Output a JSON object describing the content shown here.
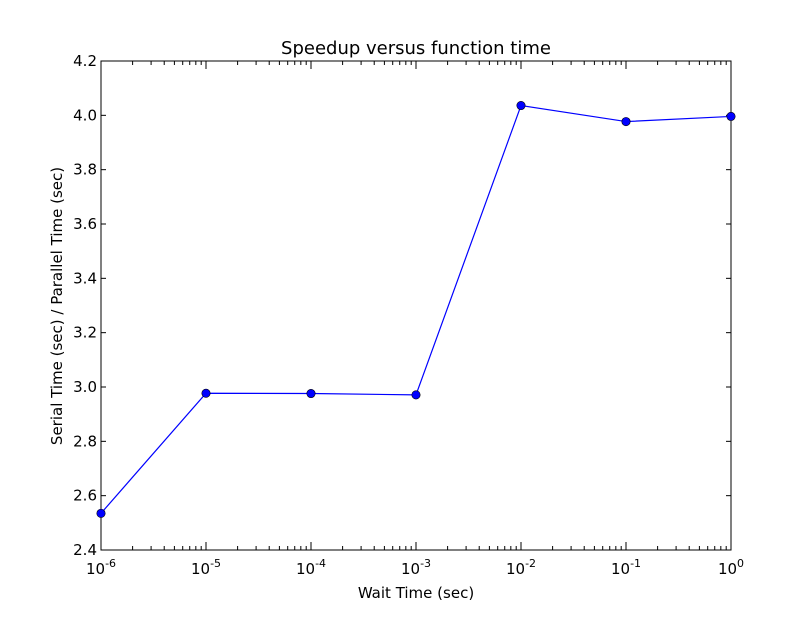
{
  "chart_data": {
    "type": "line",
    "title": "Speedup versus function time",
    "xlabel": "Wait Time (sec)",
    "ylabel": "Serial Time (sec) / Parallel Time (sec)",
    "x_scale": "log",
    "xlim": [
      1e-06,
      1
    ],
    "ylim": [
      2.4,
      4.2
    ],
    "grid": false,
    "x_ticks": [
      {
        "value": 1e-06,
        "base": "10",
        "exp": "-6"
      },
      {
        "value": 1e-05,
        "base": "10",
        "exp": "-5"
      },
      {
        "value": 0.0001,
        "base": "10",
        "exp": "-4"
      },
      {
        "value": 0.001,
        "base": "10",
        "exp": "-3"
      },
      {
        "value": 0.01,
        "base": "10",
        "exp": "-2"
      },
      {
        "value": 0.1,
        "base": "10",
        "exp": "-1"
      },
      {
        "value": 1,
        "base": "10",
        "exp": "0"
      }
    ],
    "y_ticks": [
      "2.4",
      "2.6",
      "2.8",
      "3.0",
      "3.2",
      "3.4",
      "3.6",
      "3.8",
      "4.0",
      "4.2"
    ],
    "series": [
      {
        "color": "#0000ff",
        "marker": "circle",
        "x": [
          1e-06,
          1e-05,
          0.0001,
          0.001,
          0.01,
          0.1,
          1
        ],
        "values": [
          2.535,
          2.977,
          2.976,
          2.971,
          4.036,
          3.977,
          3.996
        ]
      }
    ]
  }
}
